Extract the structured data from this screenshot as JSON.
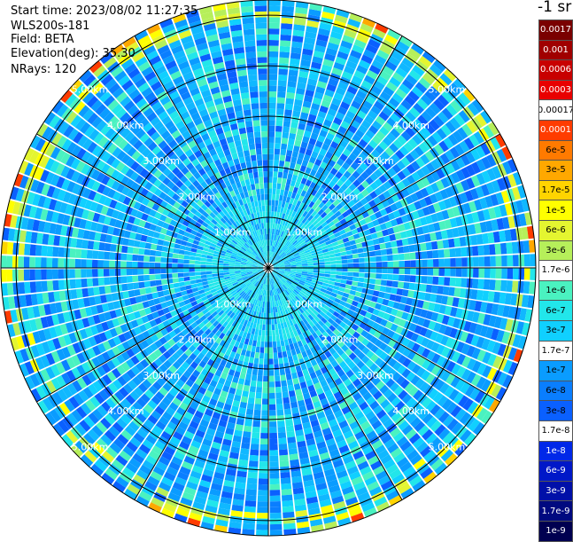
{
  "header": {
    "start_time": "Start time: 2023/08/02 11:27:35",
    "instrument": "WLS200s-181",
    "field": "Field: BETA",
    "elevation": "Elevation(deg): 35.30",
    "nrays": "NRays: 120"
  },
  "colorbar": {
    "title": "-1 sr",
    "entries": [
      {
        "label": "0.0017",
        "color": "#7a0000",
        "text": "#ffffff"
      },
      {
        "label": "0.001",
        "color": "#a00000",
        "text": "#ffffff"
      },
      {
        "label": "0.0006",
        "color": "#c80000",
        "text": "#ffffff"
      },
      {
        "label": "0.0003",
        "color": "#e80000",
        "text": "#ffffff"
      },
      {
        "label": "0.00017",
        "color": "#ffffff",
        "text": "#000000"
      },
      {
        "label": "0.0001",
        "color": "#ff3c00",
        "text": "#ffffff"
      },
      {
        "label": "6e-5",
        "color": "#ff7a00",
        "text": "#000000"
      },
      {
        "label": "3e-5",
        "color": "#ffa800",
        "text": "#000000"
      },
      {
        "label": "1.7e-5",
        "color": "#ffd400",
        "text": "#000000"
      },
      {
        "label": "1e-5",
        "color": "#ffff00",
        "text": "#000000"
      },
      {
        "label": "6e-6",
        "color": "#e4f530",
        "text": "#000000"
      },
      {
        "label": "3e-6",
        "color": "#b6ef5a",
        "text": "#000000"
      },
      {
        "label": "1.7e-6",
        "color": "#ffffff",
        "text": "#000000"
      },
      {
        "label": "1e-6",
        "color": "#4af2c0",
        "text": "#000000"
      },
      {
        "label": "6e-7",
        "color": "#22e6ea",
        "text": "#000000"
      },
      {
        "label": "3e-7",
        "color": "#10d0ff",
        "text": "#000000"
      },
      {
        "label": "1.7e-7",
        "color": "#ffffff",
        "text": "#000000"
      },
      {
        "label": "1e-7",
        "color": "#0a9cff",
        "text": "#000000"
      },
      {
        "label": "6e-8",
        "color": "#0a7eff",
        "text": "#000000"
      },
      {
        "label": "3e-8",
        "color": "#0a60ff",
        "text": "#000000"
      },
      {
        "label": "1.7e-8",
        "color": "#ffffff",
        "text": "#000000"
      },
      {
        "label": "1e-8",
        "color": "#0028e8",
        "text": "#ffffff"
      },
      {
        "label": "6e-9",
        "color": "#0018c8",
        "text": "#ffffff"
      },
      {
        "label": "3e-9",
        "color": "#0010a8",
        "text": "#ffffff"
      },
      {
        "label": "1.7e-9",
        "color": "#000a80",
        "text": "#ffffff"
      },
      {
        "label": "1e-9",
        "color": "#000050",
        "text": "#ffffff"
      }
    ]
  },
  "chart_data": {
    "type": "heatmap",
    "projection": "polar-ppi",
    "field": "BETA",
    "units": "-1 sr",
    "rings_km": [
      1,
      2,
      3,
      4,
      5
    ],
    "ring_labels": [
      "1.00km",
      "2.00km",
      "3.00km",
      "4.00km",
      "5.00km"
    ],
    "max_range_km": 5.3,
    "spokes_deg": [
      0,
      30,
      60,
      90,
      120,
      150,
      180,
      210,
      240,
      270,
      300,
      330
    ],
    "nrays": 120,
    "color_scale": "log",
    "value_range": [
      1e-09,
      0.0017
    ],
    "typical_value": "3e-7",
    "edge_values": "1e-6 to 1e-5 (yellow/red) near outer rim",
    "grid": true
  }
}
